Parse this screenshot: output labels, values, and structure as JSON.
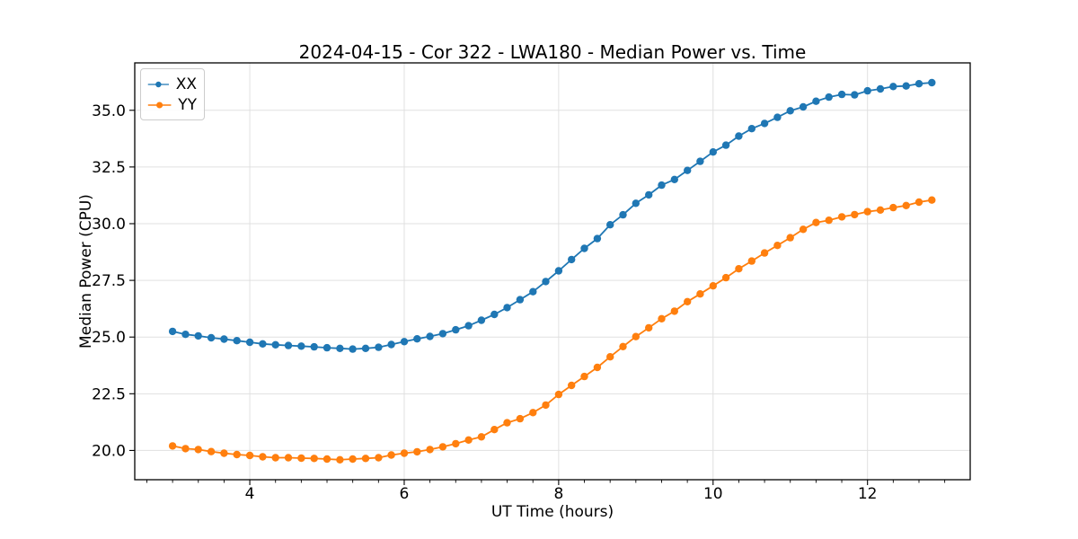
{
  "chart_data": {
    "type": "line",
    "title": "2024-04-15 - Cor 322 - LWA180 - Median Power vs. Time",
    "xlabel": "UT Time (hours)",
    "ylabel": "Median Power (CPU)",
    "xlim": [
      2.51,
      13.33
    ],
    "ylim": [
      18.71,
      37.09
    ],
    "grid": true,
    "legend_position": "upper-left",
    "x_major_ticks": [
      4,
      6,
      8,
      10,
      12
    ],
    "x_tick_labels": [
      "4",
      "6",
      "8",
      "10",
      "12"
    ],
    "x_minor_tick_step": 0.3333,
    "y_major_ticks": [
      20.0,
      22.5,
      25.0,
      27.5,
      30.0,
      32.5,
      35.0
    ],
    "y_tick_labels": [
      "20.0",
      "22.5",
      "25.0",
      "27.5",
      "30.0",
      "32.5",
      "35.0"
    ],
    "x": [
      3.0,
      3.167,
      3.333,
      3.5,
      3.667,
      3.833,
      4.0,
      4.167,
      4.333,
      4.5,
      4.667,
      4.833,
      5.0,
      5.167,
      5.333,
      5.5,
      5.667,
      5.833,
      6.0,
      6.167,
      6.333,
      6.5,
      6.667,
      6.833,
      7.0,
      7.167,
      7.333,
      7.5,
      7.667,
      7.833,
      8.0,
      8.167,
      8.333,
      8.5,
      8.667,
      8.833,
      9.0,
      9.167,
      9.333,
      9.5,
      9.667,
      9.833,
      10.0,
      10.167,
      10.333,
      10.5,
      10.667,
      10.833,
      11.0,
      11.167,
      11.333,
      11.5,
      11.667,
      11.833,
      12.0,
      12.167,
      12.333,
      12.5,
      12.667,
      12.833
    ],
    "series": [
      {
        "name": "XX",
        "color": "#1f77b4",
        "marker": "circle",
        "values": [
          25.25,
          25.12,
          25.05,
          24.97,
          24.91,
          24.84,
          24.77,
          24.7,
          24.66,
          24.63,
          24.6,
          24.57,
          24.53,
          24.5,
          24.47,
          24.5,
          24.55,
          24.67,
          24.8,
          24.92,
          25.03,
          25.15,
          25.32,
          25.5,
          25.74,
          26.0,
          26.3,
          26.65,
          27.0,
          27.45,
          27.92,
          28.42,
          28.91,
          29.34,
          29.95,
          30.39,
          30.9,
          31.27,
          31.7,
          31.95,
          32.35,
          32.75,
          33.16,
          33.46,
          33.86,
          34.19,
          34.42,
          34.69,
          34.98,
          35.15,
          35.4,
          35.58,
          35.7,
          35.68,
          35.86,
          35.94,
          36.05,
          36.07,
          36.17,
          36.22
        ]
      },
      {
        "name": "YY",
        "color": "#ff7f0e",
        "marker": "circle",
        "values": [
          20.2,
          20.08,
          20.04,
          19.95,
          19.88,
          19.82,
          19.78,
          19.72,
          19.68,
          19.68,
          19.66,
          19.65,
          19.62,
          19.59,
          19.62,
          19.65,
          19.68,
          19.8,
          19.88,
          19.94,
          20.04,
          20.16,
          20.3,
          20.46,
          20.6,
          20.92,
          21.22,
          21.4,
          21.67,
          22.0,
          22.47,
          22.87,
          23.26,
          23.66,
          24.13,
          24.58,
          25.02,
          25.41,
          25.81,
          26.14,
          26.56,
          26.9,
          27.26,
          27.62,
          28.01,
          28.35,
          28.71,
          29.04,
          29.38,
          29.75,
          30.05,
          30.15,
          30.3,
          30.4,
          30.53,
          30.6,
          30.71,
          30.8,
          30.95,
          31.04
        ]
      }
    ],
    "style": {
      "grid_color": "#e0e0e0",
      "spine_color": "#000000",
      "background": "#ffffff",
      "marker_radius": 4.2,
      "line_width": 1.8
    }
  }
}
